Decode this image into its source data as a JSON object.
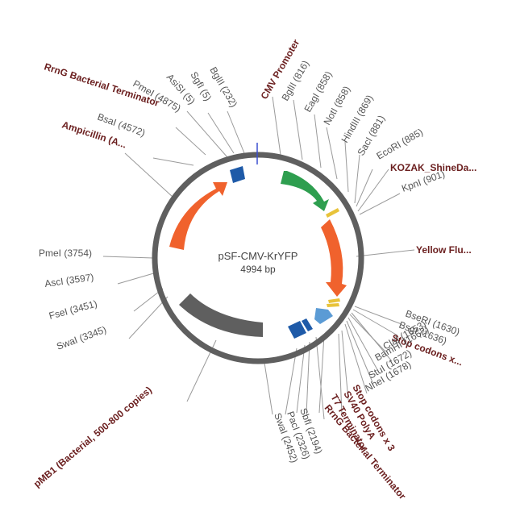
{
  "plasmid": {
    "name": "pSF-CMV-KrYFP",
    "length_label": "4994 bp",
    "length": 4994
  },
  "colors": {
    "backbone": "#5f5f5f",
    "promoter": "#2e9e4f",
    "cds": "#f0622d",
    "terminator": "#1e5aa8",
    "polyA": "#5b9bd5",
    "origin": "#5f5f5f",
    "marker": "#e8c33a",
    "cut_mark": "#3a4fd0"
  },
  "features": [
    {
      "id": "cmv",
      "name": "CMV Promoter",
      "type": "promoter"
    },
    {
      "id": "kozak",
      "name": "KOZAK_ShineDa...",
      "type": "marker"
    },
    {
      "id": "yfp",
      "name": "Yellow Flu...",
      "type": "cds"
    },
    {
      "id": "stop1",
      "name": "Stop codons x...",
      "type": "marker"
    },
    {
      "id": "stop2",
      "name": "Stop codons x 3",
      "type": "marker"
    },
    {
      "id": "sv40",
      "name": "SV40 PolyA",
      "type": "polyA"
    },
    {
      "id": "t7",
      "name": "T7 Terminator",
      "type": "terminator"
    },
    {
      "id": "rrng2",
      "name": "RrnG Bacterial Terminator",
      "type": "terminator"
    },
    {
      "id": "pmb1",
      "name": "pMB1 (Bacterial, 500-800 copies)",
      "type": "origin"
    },
    {
      "id": "amp",
      "name": "Ampicillin (A...",
      "type": "cds"
    },
    {
      "id": "rrng1",
      "name": "RrnG Bacterial Terminator",
      "type": "terminator"
    }
  ],
  "sites": [
    {
      "label": "BglII (232)"
    },
    {
      "label": "BglII (816)"
    },
    {
      "label": "EagI (858)"
    },
    {
      "label": "NotI (858)"
    },
    {
      "label": "HindIII (869)"
    },
    {
      "label": "SacI (881)"
    },
    {
      "label": "EcoRI (885)"
    },
    {
      "label": "KpnI (901)"
    },
    {
      "label": "BseRI (1630)"
    },
    {
      "label": "BsgI (1636)"
    },
    {
      "label": "ClaI (1653)"
    },
    {
      "label": "BamHI (1662)"
    },
    {
      "label": "StuI (1672)"
    },
    {
      "label": "NheI (1678)"
    },
    {
      "label": "SbfI (2194)"
    },
    {
      "label": "PacI (2326)"
    },
    {
      "label": "SwaI (2452)"
    },
    {
      "label": "SwaI (3345)"
    },
    {
      "label": "FseI (3451)"
    },
    {
      "label": "AscI (3597)"
    },
    {
      "label": "PmeI (3754)"
    },
    {
      "label": "BsaI (4572)"
    },
    {
      "label": "PmeI (4875)"
    },
    {
      "label": "AsiSI (5)"
    },
    {
      "label": "SgfI (5)"
    }
  ]
}
